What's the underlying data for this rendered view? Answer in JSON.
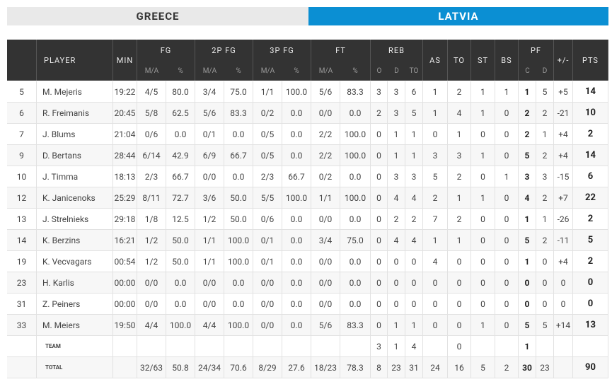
{
  "tabs": [
    "GREECE",
    "LATVIA"
  ],
  "table": {
    "columns": [
      {
        "label": "PLAYER"
      },
      {
        "label": "MIN"
      },
      {
        "label": "FG",
        "sub": [
          "M/A",
          "%"
        ]
      },
      {
        "label": "2P FG",
        "sub": [
          "M/A",
          "%"
        ]
      },
      {
        "label": "3P FG",
        "sub": [
          "M/A",
          "%"
        ]
      },
      {
        "label": "FT",
        "sub": [
          "M/A",
          "%"
        ]
      },
      {
        "label": "REB",
        "sub": [
          "O",
          "D",
          "TO"
        ]
      },
      {
        "label": "AS"
      },
      {
        "label": "TO"
      },
      {
        "label": "ST"
      },
      {
        "label": "BS"
      },
      {
        "label": "PF",
        "sub": [
          "C",
          "D"
        ]
      },
      {
        "label": "+/-"
      },
      {
        "label": "PTS"
      }
    ],
    "rows": [
      [
        "5",
        "M. Mejeris",
        "19:22",
        "4/5",
        "80.0",
        "3/4",
        "75.0",
        "1/1",
        "100.0",
        "5/6",
        "83.3",
        "3",
        "3",
        "6",
        "1",
        "2",
        "1",
        "1",
        "1",
        "5",
        "+5",
        "14"
      ],
      [
        "6",
        "R. Freimanis",
        "20:45",
        "5/8",
        "62.5",
        "5/6",
        "83.3",
        "0/2",
        "0.0",
        "0/0",
        "0.0",
        "2",
        "3",
        "5",
        "1",
        "4",
        "1",
        "0",
        "2",
        "2",
        "-21",
        "10"
      ],
      [
        "7",
        "J. Blums",
        "21:04",
        "0/6",
        "0.0",
        "0/1",
        "0.0",
        "0/5",
        "0.0",
        "2/2",
        "100.0",
        "0",
        "1",
        "1",
        "0",
        "1",
        "0",
        "0",
        "2",
        "1",
        "+4",
        "2"
      ],
      [
        "9",
        "D. Bertans",
        "28:44",
        "6/14",
        "42.9",
        "6/9",
        "66.7",
        "0/5",
        "0.0",
        "2/2",
        "100.0",
        "0",
        "1",
        "1",
        "3",
        "3",
        "1",
        "0",
        "5",
        "2",
        "+4",
        "14"
      ],
      [
        "10",
        "J. Timma",
        "18:13",
        "2/3",
        "66.7",
        "0/0",
        "0.0",
        "2/3",
        "66.7",
        "0/2",
        "0.0",
        "0",
        "3",
        "3",
        "5",
        "2",
        "0",
        "1",
        "3",
        "3",
        "-15",
        "6"
      ],
      [
        "12",
        "K. Janicenoks",
        "25:29",
        "8/11",
        "72.7",
        "3/6",
        "50.0",
        "5/5",
        "100.0",
        "1/1",
        "100.0",
        "0",
        "4",
        "4",
        "2",
        "1",
        "1",
        "0",
        "4",
        "2",
        "+7",
        "22"
      ],
      [
        "13",
        "J. Strelnieks",
        "29:18",
        "1/8",
        "12.5",
        "1/2",
        "50.0",
        "0/6",
        "0.0",
        "0/0",
        "0.0",
        "0",
        "2",
        "2",
        "7",
        "2",
        "0",
        "0",
        "1",
        "1",
        "-26",
        "2"
      ],
      [
        "14",
        "K. Berzins",
        "16:21",
        "1/2",
        "50.0",
        "1/1",
        "100.0",
        "0/1",
        "0.0",
        "3/4",
        "75.0",
        "0",
        "4",
        "4",
        "1",
        "1",
        "0",
        "0",
        "5",
        "2",
        "-11",
        "5"
      ],
      [
        "19",
        "K. Vecvagars",
        "00:54",
        "1/2",
        "50.0",
        "1/1",
        "100.0",
        "0/1",
        "0.0",
        "0/0",
        "0.0",
        "0",
        "0",
        "0",
        "4",
        "0",
        "0",
        "0",
        "1",
        "0",
        "+4",
        "2"
      ],
      [
        "23",
        "H. Karlis",
        "00:00",
        "0/0",
        "0.0",
        "0/0",
        "0.0",
        "0/0",
        "0.0",
        "0/0",
        "0.0",
        "0",
        "0",
        "0",
        "0",
        "0",
        "0",
        "0",
        "0",
        "0",
        "0",
        "0"
      ],
      [
        "31",
        "Z. Peiners",
        "00:00",
        "0/0",
        "0.0",
        "0/0",
        "0.0",
        "0/0",
        "0.0",
        "0/0",
        "0.0",
        "0",
        "0",
        "0",
        "0",
        "0",
        "0",
        "0",
        "0",
        "0",
        "0",
        "0"
      ],
      [
        "33",
        "M. Meiers",
        "19:50",
        "4/4",
        "100.0",
        "4/4",
        "100.0",
        "0/0",
        "0.0",
        "5/6",
        "83.3",
        "0",
        "1",
        "1",
        "0",
        "0",
        "1",
        "0",
        "5",
        "5",
        "+14",
        "13"
      ],
      [
        null,
        "TEAM",
        null,
        null,
        null,
        null,
        null,
        null,
        null,
        null,
        null,
        "3",
        "1",
        "4",
        null,
        "0",
        null,
        null,
        "1",
        null,
        null,
        null
      ],
      [
        null,
        "TOTAL",
        null,
        "32/63",
        "50.8",
        "24/34",
        "70.6",
        "8/29",
        "27.6",
        "18/23",
        "78.3",
        "8",
        "23",
        "31",
        "24",
        "16",
        "5",
        "2",
        "30",
        "23",
        null,
        "90"
      ]
    ]
  }
}
